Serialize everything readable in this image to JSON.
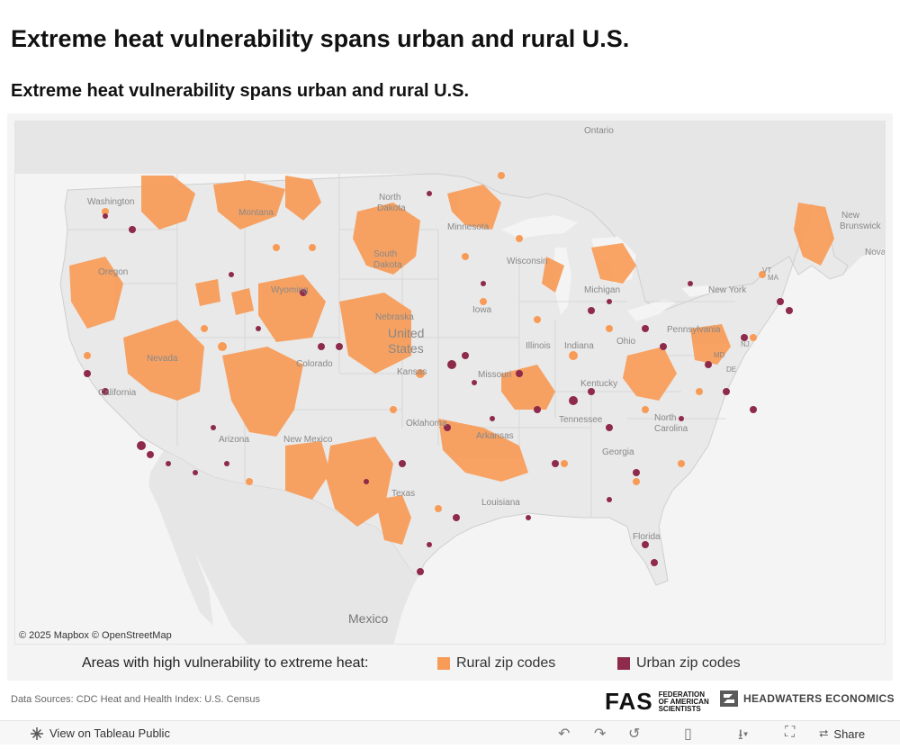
{
  "page": {
    "title": "Extreme heat vulnerability spans urban and rural U.S.",
    "viz_title": "Extreme heat vulnerability spans urban and rural U.S."
  },
  "map": {
    "attribution": "© 2025 Mapbox  © OpenStreetMap",
    "colors": {
      "rural": "#f89b57",
      "urban": "#8e2a4a",
      "land": "#e9e9e9",
      "water": "#f4f4f4"
    },
    "labels": {
      "ontario": "Ontario",
      "new_brunswick_1": "New",
      "new_brunswick_2": "Brunswick",
      "nova": "Nova",
      "washington": "Washington",
      "montana": "Montana",
      "north_dakota_1": "North",
      "north_dakota_2": "Dakota",
      "minnesota": "Minnesota",
      "south_dakota_1": "South",
      "south_dakota_2": "Dakota",
      "wisconsin": "Wisconsin",
      "michigan": "Michigan",
      "new_york": "New York",
      "oregon": "Oregon",
      "wyoming": "Wyoming",
      "iowa": "Iowa",
      "nebraska": "Nebraska",
      "united_states_1": "United",
      "united_states_2": "States",
      "pennsylvania": "Pennsylvania",
      "ohio": "Ohio",
      "illinois": "Illinois",
      "indiana": "Indiana",
      "nevada": "Nevada",
      "colorado": "Colorado",
      "kansas": "Kansas",
      "missouri": "Missouri",
      "kentucky": "Kentucky",
      "california": "California",
      "tennessee": "Tennessee",
      "north_carolina_1": "North",
      "north_carolina_2": "Carolina",
      "oklahoma": "Oklahoma",
      "arkansas": "Arkansas",
      "arizona": "Arizona",
      "new_mexico": "New Mexico",
      "georgia": "Georgia",
      "texas": "Texas",
      "louisiana": "Louisiana",
      "florida": "Florida",
      "mexico": "Mexico",
      "nj": "NJ",
      "ma": "MA",
      "vt": "VT",
      "md": "MD",
      "de": "DE"
    }
  },
  "legend": {
    "title": "Areas with high vulnerability to extreme heat:",
    "rural_label": "Rural zip codes",
    "urban_label": "Urban zip codes"
  },
  "footer": {
    "sources": "Data Sources: CDC Heat and Health Index: U.S. Census",
    "fas_mark": "FAS",
    "fas_line1": "FEDERATION",
    "fas_line2": "OF AMERICAN",
    "fas_line3": "SCIENTISTS",
    "hw_name": "HEADWATERS ECONOMICS"
  },
  "toolbar": {
    "view_label": "View on Tableau Public",
    "share_label": "Share"
  }
}
